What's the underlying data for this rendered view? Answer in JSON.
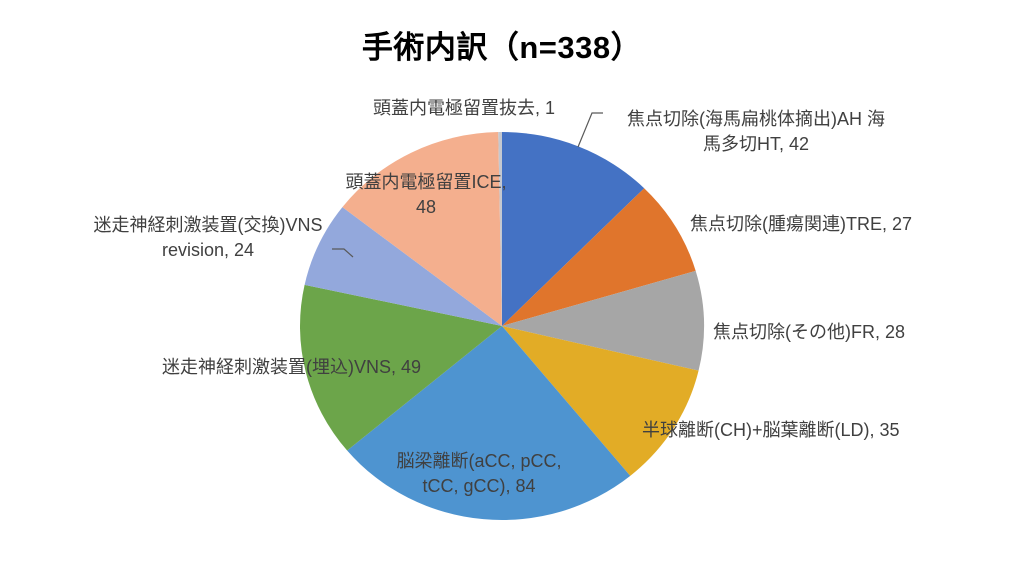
{
  "title": "手術内訳（n=338）",
  "chart_data": {
    "type": "pie",
    "title": "手術内訳（n=338）",
    "total": 338,
    "start_angle_deg": 0,
    "direction": "clockwise",
    "legend": "none",
    "label_style": "outside category name + value",
    "slices": [
      {
        "name": "焦点切除(海馬扁桃体摘出)AH 海馬多切HT",
        "value": 42,
        "color": "#4472C4",
        "label_lines": [
          "焦点切除(海馬扁桃体摘出)AH 海",
          "馬多切HT, 42"
        ]
      },
      {
        "name": "焦点切除(腫瘍関連)TRE",
        "value": 27,
        "color": "#E0752C",
        "label_lines": [
          "焦点切除(腫瘍関連)TRE, 27"
        ]
      },
      {
        "name": "焦点切除(その他)FR",
        "value": 28,
        "color": "#A6A6A6",
        "label_lines": [
          "焦点切除(その他)FR, 28"
        ]
      },
      {
        "name": "半球離断(CH)+脳葉離断(LD)",
        "value": 35,
        "color": "#E2AC26",
        "label_lines": [
          "半球離断(CH)+脳葉離断(LD), 35"
        ]
      },
      {
        "name": "脳梁離断(aCC, pCC, tCC, gCC)",
        "value": 84,
        "color": "#4E94D0",
        "label_lines": [
          "脳梁離断(aCC, pCC,",
          "tCC, gCC), 84"
        ]
      },
      {
        "name": "迷走神経刺激装置(埋込)VNS",
        "value": 49,
        "color": "#6CA54A",
        "label_lines": [
          "迷走神経刺激装置(埋込)VNS, 49"
        ]
      },
      {
        "name": "迷走神経刺激装置(交換)VNS revision",
        "value": 24,
        "color": "#93A8DC",
        "label_lines": [
          "迷走神経刺激装置(交換)VNS",
          "revision, 24"
        ]
      },
      {
        "name": "頭蓋内電極留置ICE",
        "value": 48,
        "color": "#F4AF8E",
        "label_lines": [
          "頭蓋内電極留置ICE,",
          "48"
        ]
      },
      {
        "name": "頭蓋内電極留置抜去",
        "value": 1,
        "color": "#C4C8D0",
        "label_lines": [
          "頭蓋内電極留置抜去, 1"
        ]
      }
    ]
  }
}
